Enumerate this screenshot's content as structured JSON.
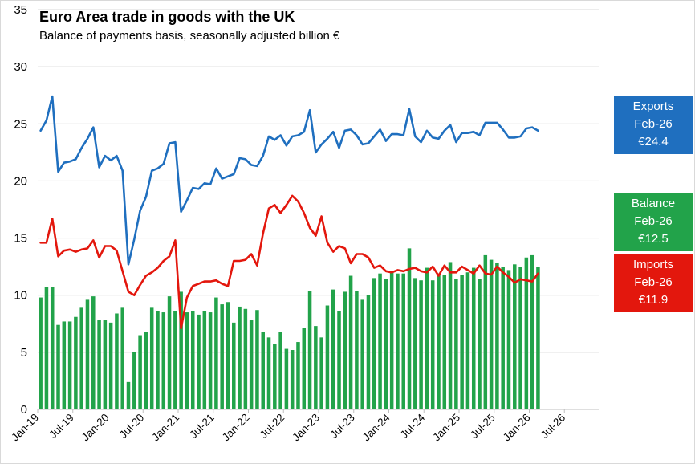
{
  "chart_data": {
    "type": "line+bar",
    "title": "Euro Area trade in goods with the UK",
    "subtitle": "Balance of payments basis, seasonally adjusted billion €",
    "ylim": [
      0,
      35
    ],
    "yticks": [
      "0",
      "5",
      "10",
      "15",
      "20",
      "25",
      "30",
      "35"
    ],
    "xticks": [
      "Jan-19",
      "Jul-19",
      "Jan-20",
      "Jul-20",
      "Jan-21",
      "Jul-21",
      "Jan-22",
      "Jul-22",
      "Jan-23",
      "Jul-23",
      "Jan-24",
      "Jul-24",
      "Jan-25",
      "Jul-25",
      "Jan-26",
      "Jul-26"
    ],
    "x_start": "Jan-19",
    "x_end": "Jan-27",
    "grid": "horizontal",
    "colors": {
      "exports": "#1f6fbf",
      "imports": "#e3170d",
      "balance": "#22a34a",
      "grid": "#d9d9d9"
    },
    "series": [
      {
        "name": "Exports",
        "type": "line",
        "color": "#1f6fbf",
        "values": [
          24.4,
          25.3,
          27.4,
          20.8,
          21.6,
          21.7,
          21.9,
          22.9,
          23.7,
          24.7,
          21.2,
          22.2,
          21.8,
          22.2,
          20.9,
          12.7,
          14.9,
          17.4,
          18.6,
          20.9,
          21.1,
          21.5,
          23.3,
          23.4,
          17.3,
          18.3,
          19.4,
          19.3,
          19.8,
          19.7,
          21.1,
          20.2,
          20.4,
          20.6,
          22.0,
          21.9,
          21.4,
          21.3,
          22.2,
          23.9,
          23.6,
          24.0,
          23.1,
          23.9,
          24.0,
          24.3,
          26.2,
          22.5,
          23.2,
          23.7,
          24.3,
          22.9,
          24.4,
          24.5,
          24.0,
          23.2,
          23.3,
          23.9,
          24.5,
          23.5,
          24.1,
          24.1,
          24.0,
          26.3,
          23.9,
          23.4,
          24.4,
          23.8,
          23.7,
          24.4,
          24.9,
          23.4,
          24.2,
          24.2,
          24.3,
          24.0,
          25.1,
          25.1,
          25.1,
          24.5,
          23.8,
          23.8,
          23.9,
          24.6,
          24.7,
          24.4
        ]
      },
      {
        "name": "Imports",
        "type": "line",
        "color": "#e3170d",
        "values": [
          14.6,
          14.6,
          16.7,
          13.4,
          13.9,
          14.0,
          13.8,
          14.0,
          14.1,
          14.8,
          13.3,
          14.3,
          14.3,
          13.9,
          12.1,
          10.3,
          10.0,
          10.9,
          11.7,
          12.0,
          12.4,
          13.0,
          13.4,
          14.8,
          7.1,
          9.8,
          10.8,
          11.0,
          11.2,
          11.2,
          11.3,
          11.0,
          10.8,
          13.0,
          13.0,
          13.1,
          13.6,
          12.6,
          15.4,
          17.6,
          17.9,
          17.2,
          17.9,
          18.7,
          18.2,
          17.2,
          15.9,
          15.2,
          16.9,
          14.6,
          13.8,
          14.3,
          14.1,
          12.8,
          13.6,
          13.6,
          13.3,
          12.4,
          12.6,
          12.1,
          12.0,
          12.2,
          12.1,
          12.3,
          12.4,
          12.1,
          12.0,
          12.5,
          11.7,
          12.6,
          12.0,
          12.0,
          12.5,
          12.2,
          11.9,
          12.6,
          11.9,
          11.8,
          12.5,
          12.0,
          11.6,
          11.1,
          11.4,
          11.3,
          11.2,
          11.9
        ]
      },
      {
        "name": "Balance",
        "type": "bar",
        "color": "#22a34a",
        "values": [
          9.8,
          10.7,
          10.7,
          7.4,
          7.7,
          7.7,
          8.1,
          8.9,
          9.6,
          9.9,
          7.8,
          7.8,
          7.6,
          8.4,
          8.9,
          2.4,
          5.0,
          6.5,
          6.8,
          8.9,
          8.6,
          8.5,
          9.9,
          8.6,
          10.3,
          8.5,
          8.6,
          8.3,
          8.6,
          8.5,
          9.8,
          9.2,
          9.4,
          7.6,
          9.0,
          8.8,
          7.8,
          8.7,
          6.8,
          6.3,
          5.7,
          6.8,
          5.3,
          5.2,
          5.9,
          7.1,
          10.4,
          7.3,
          6.3,
          9.1,
          10.5,
          8.6,
          10.3,
          11.7,
          10.4,
          9.6,
          10.0,
          11.5,
          11.9,
          11.4,
          12.1,
          11.9,
          11.9,
          14.1,
          11.5,
          11.3,
          12.4,
          11.3,
          11.9,
          11.8,
          12.9,
          11.4,
          11.8,
          12.0,
          12.4,
          11.4,
          13.5,
          13.1,
          12.8,
          12.5,
          12.2,
          12.7,
          12.5,
          13.3,
          13.5,
          12.5
        ]
      }
    ],
    "end_labels": [
      {
        "key": "exports",
        "name": "Exports",
        "period": "Feb-26",
        "value": "€24.4"
      },
      {
        "key": "balance",
        "name": "Balance",
        "period": "Feb-26",
        "value": "€12.5"
      },
      {
        "key": "imports",
        "name": "Imports",
        "period": "Feb-26",
        "value": "€11.9"
      }
    ]
  }
}
